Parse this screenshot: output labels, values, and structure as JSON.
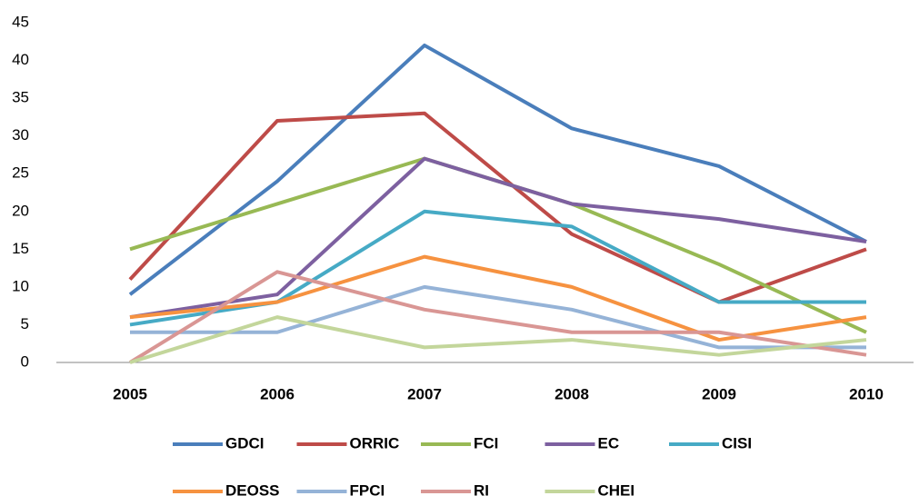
{
  "chart_data": {
    "type": "line",
    "categories": [
      "2005",
      "2006",
      "2007",
      "2008",
      "2009",
      "2010"
    ],
    "series": [
      {
        "name": "GDCI",
        "color": "#4a7ebb",
        "values": [
          9,
          24,
          42,
          31,
          26,
          16
        ]
      },
      {
        "name": "ORRIC",
        "color": "#be4b48",
        "values": [
          11,
          32,
          33,
          17,
          8,
          15
        ]
      },
      {
        "name": "FCI",
        "color": "#98b954",
        "values": [
          15,
          21,
          27,
          21,
          13,
          4
        ]
      },
      {
        "name": "EC",
        "color": "#7d60a0",
        "values": [
          6,
          9,
          27,
          21,
          19,
          16
        ]
      },
      {
        "name": "CISI",
        "color": "#46aac5",
        "values": [
          5,
          8,
          20,
          18,
          8,
          8
        ]
      },
      {
        "name": "DEOSS",
        "color": "#f69240",
        "values": [
          6,
          8,
          14,
          10,
          3,
          6
        ]
      },
      {
        "name": "FPCI",
        "color": "#95b3d7",
        "values": [
          4,
          4,
          10,
          7,
          2,
          2
        ]
      },
      {
        "name": "RI",
        "color": "#d99694",
        "values": [
          0,
          12,
          7,
          4,
          4,
          1
        ]
      },
      {
        "name": "CHEI",
        "color": "#c3d69b",
        "values": [
          0,
          6,
          2,
          3,
          1,
          3
        ]
      }
    ],
    "ylim": [
      0,
      45
    ],
    "yticks": [
      0,
      5,
      10,
      15,
      20,
      25,
      30,
      35,
      40,
      45
    ],
    "grid": false,
    "legend": "bottom"
  }
}
